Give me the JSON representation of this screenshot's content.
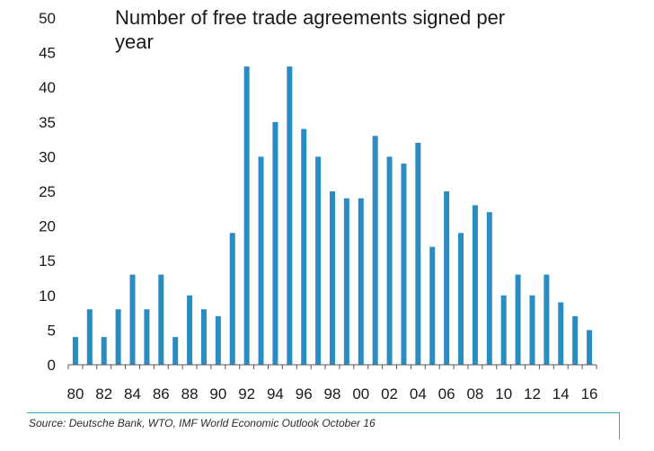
{
  "chart_data": {
    "type": "bar",
    "title": "Number of free trade agreements signed per year",
    "xlabel": "",
    "ylabel": "",
    "ylim": [
      0,
      50
    ],
    "yticks": [
      0,
      5,
      10,
      15,
      20,
      25,
      30,
      35,
      40,
      45,
      50
    ],
    "categories": [
      "80",
      "81",
      "82",
      "83",
      "84",
      "85",
      "86",
      "87",
      "88",
      "89",
      "90",
      "91",
      "92",
      "93",
      "94",
      "95",
      "96",
      "97",
      "98",
      "99",
      "00",
      "01",
      "02",
      "03",
      "04",
      "05",
      "06",
      "07",
      "08",
      "09",
      "10",
      "11",
      "12",
      "13",
      "14",
      "15",
      "16"
    ],
    "values": [
      4,
      8,
      4,
      8,
      13,
      8,
      13,
      4,
      10,
      8,
      7,
      19,
      43,
      30,
      35,
      43,
      34,
      30,
      25,
      24,
      24,
      33,
      30,
      29,
      32,
      17,
      25,
      19,
      23,
      22,
      10,
      13,
      10,
      13,
      9,
      7,
      5
    ],
    "xtick_labels": [
      "80",
      "82",
      "84",
      "86",
      "88",
      "90",
      "92",
      "94",
      "96",
      "98",
      "00",
      "02",
      "04",
      "06",
      "08",
      "10",
      "12",
      "14",
      "16"
    ],
    "bar_color": "#2b8cc4",
    "grid": false,
    "source": "Source: Deutsche Bank, WTO, IMF World Economic Outlook October 16"
  }
}
